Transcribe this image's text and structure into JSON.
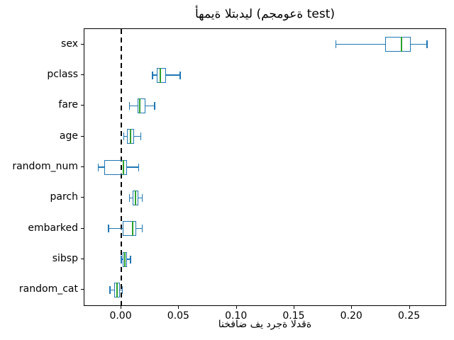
{
  "title": "أهمية التبديل (مجموعة test)",
  "xlabel": "انخفاض في درجة الدقة",
  "chart_data": {
    "type": "boxplot",
    "orientation": "horizontal",
    "title": "أهمية التبديل (مجموعة test)",
    "xlabel": "انخفاض في درجة الدقة",
    "categories": [
      "sex",
      "pclass",
      "fare",
      "age",
      "random_num",
      "parch",
      "embarked",
      "sibsp",
      "random_cat"
    ],
    "boxes": [
      {
        "feature": "sex",
        "whisker_low": 0.186,
        "q1": 0.229,
        "median": 0.243,
        "q3": 0.251,
        "whisker_high": 0.265
      },
      {
        "feature": "pclass",
        "whisker_low": 0.027,
        "q1": 0.031,
        "median": 0.034,
        "q3": 0.039,
        "whisker_high": 0.051
      },
      {
        "feature": "fare",
        "whisker_low": 0.007,
        "q1": 0.014,
        "median": 0.016,
        "q3": 0.021,
        "whisker_high": 0.029
      },
      {
        "feature": "age",
        "whisker_low": 0.002,
        "q1": 0.005,
        "median": 0.008,
        "q3": 0.011,
        "whisker_high": 0.017
      },
      {
        "feature": "random_num",
        "whisker_low": -0.02,
        "q1": -0.015,
        "median": 0.002,
        "q3": 0.005,
        "whisker_high": 0.015
      },
      {
        "feature": "parch",
        "whisker_low": 0.007,
        "q1": 0.01,
        "median": 0.012,
        "q3": 0.015,
        "whisker_high": 0.018
      },
      {
        "feature": "embarked",
        "whisker_low": -0.011,
        "q1": 0.001,
        "median": 0.01,
        "q3": 0.013,
        "whisker_high": 0.018
      },
      {
        "feature": "sibsp",
        "whisker_low": 0.0,
        "q1": 0.001,
        "median": 0.003,
        "q3": 0.005,
        "whisker_high": 0.008
      },
      {
        "feature": "random_cat",
        "whisker_low": -0.01,
        "q1": -0.006,
        "median": -0.004,
        "q3": -0.001,
        "whisker_high": 0.001
      }
    ],
    "x_ticks": [
      "0.00",
      "0.05",
      "0.10",
      "0.15",
      "0.20",
      "0.25"
    ],
    "x_tick_values": [
      0.0,
      0.05,
      0.1,
      0.15,
      0.2,
      0.25
    ],
    "xlim": [
      -0.032,
      0.281
    ],
    "reference_line_x": 0,
    "grid": false,
    "legend": "none",
    "colors": {
      "box": "#1f77b4",
      "whisker": "#1f77b4",
      "median": "#2ca02c",
      "reference_line": "#000000",
      "spine": "#000000"
    }
  }
}
